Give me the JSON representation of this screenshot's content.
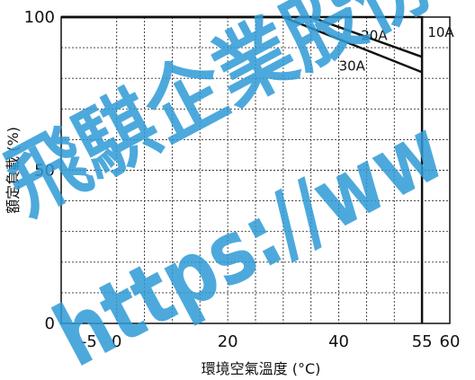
{
  "chart_data": {
    "type": "line",
    "xlabel": "環境空氣溫度 (°C)",
    "ylabel": "額定負載 (%)",
    "xlim": [
      -10,
      60
    ],
    "ylim": [
      0,
      100
    ],
    "x_ticks": [
      -5,
      0,
      20,
      40,
      55,
      60
    ],
    "x_tick_labels": [
      "-5",
      "0",
      "20",
      "40",
      "55",
      "60"
    ],
    "y_ticks": [
      0,
      50,
      100
    ],
    "y_tick_labels": [
      "0",
      "50",
      "100"
    ],
    "x_grid": [
      0,
      5,
      10,
      15,
      20,
      25,
      30,
      35,
      40,
      45,
      50,
      55
    ],
    "y_grid": [
      10,
      20,
      30,
      40,
      50,
      60,
      70,
      80,
      90
    ],
    "grid": true,
    "series": [
      {
        "name": "10A",
        "x": [
          -10,
          55,
          55
        ],
        "y": [
          100,
          100,
          0
        ],
        "color": "#111111"
      },
      {
        "name": "20A",
        "x": [
          -10,
          35,
          55
        ],
        "y": [
          100,
          100,
          87
        ],
        "color": "#111111"
      },
      {
        "name": "30A",
        "x": [
          -10,
          30,
          55
        ],
        "y": [
          100,
          100,
          82
        ],
        "color": "#111111"
      }
    ],
    "series_labels": [
      {
        "text": "10A",
        "x": 56,
        "y": 95
      },
      {
        "text": "20A",
        "x": 44,
        "y": 94
      },
      {
        "text": "30A",
        "x": 40,
        "y": 84
      }
    ]
  },
  "watermark": {
    "line1": "飛騏企業股份",
    "line2": "https://ww"
  }
}
